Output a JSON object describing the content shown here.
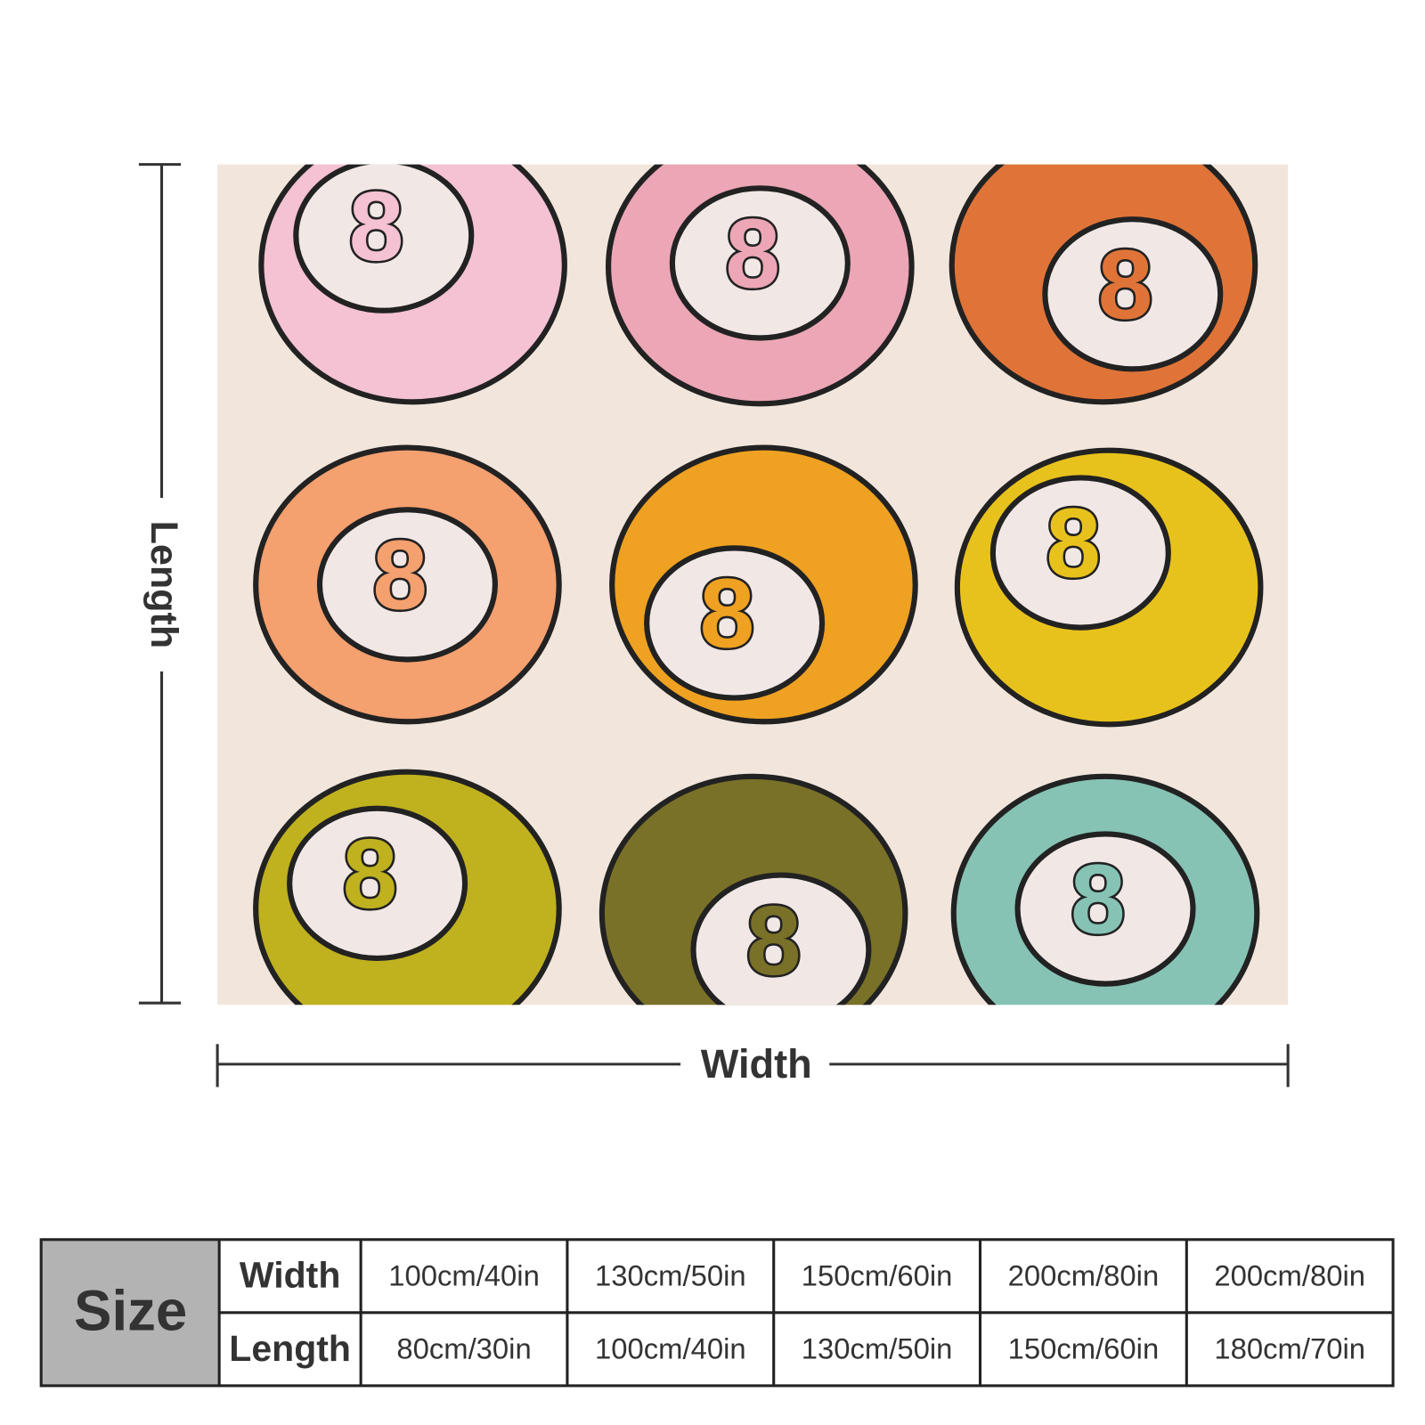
{
  "blanket": {
    "balls": [
      "8",
      "8",
      "8",
      "8",
      "8",
      "8",
      "8",
      "8",
      "8"
    ]
  },
  "dimensions": {
    "length": "Length",
    "width": "Width"
  },
  "table": {
    "header": "Size",
    "rows": [
      [
        "Width",
        "100cm/40in",
        "130cm/50in",
        "150cm/60in",
        "200cm/80in",
        "200cm/80in"
      ],
      [
        "Length",
        "80cm/30in",
        "100cm/40in",
        "130cm/50in",
        "150cm/60in",
        "180cm/70in"
      ]
    ]
  }
}
